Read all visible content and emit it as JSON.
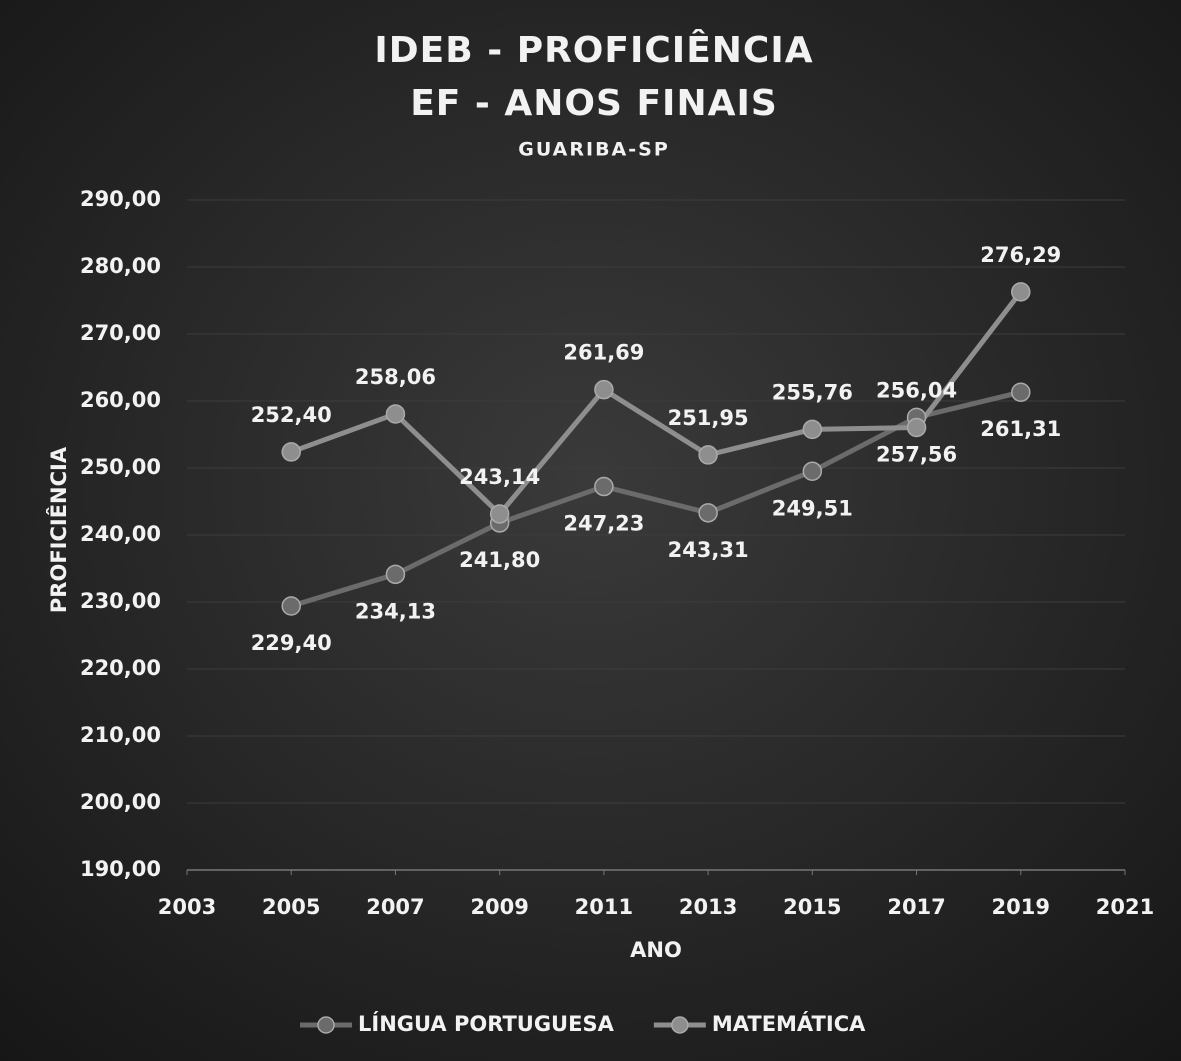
{
  "chart_data": {
    "type": "line",
    "title": [
      "IDEB - PROFICIÊNCIA",
      "EF - ANOS FINAIS"
    ],
    "subtitle": "GUARIBA-SP",
    "x_label": "ANO",
    "y_label": "PROFICIÊNCIA",
    "x": [
      2005,
      2007,
      2009,
      2011,
      2013,
      2015,
      2017,
      2019
    ],
    "series": [
      {
        "name": "LÍNGUA PORTUGUESA",
        "color": "#6b6b6b",
        "values": [
          229.4,
          234.13,
          241.8,
          247.23,
          243.31,
          249.51,
          257.56,
          261.31
        ],
        "value_labels": [
          "229,40",
          "234,13",
          "241,80",
          "247,23",
          "243,31",
          "249,51",
          "257,56",
          "261,31"
        ]
      },
      {
        "name": "MATEMÁTICA",
        "color": "#8e8e8e",
        "values": [
          252.4,
          258.06,
          243.14,
          261.69,
          251.95,
          255.76,
          256.04,
          276.29
        ],
        "value_labels": [
          "252,40",
          "258,06",
          "243,14",
          "261,69",
          "251,95",
          "255,76",
          "256,04",
          "276,29"
        ]
      }
    ],
    "xlim": [
      2003,
      2021
    ],
    "xticks": [
      2003,
      2005,
      2007,
      2009,
      2011,
      2013,
      2015,
      2017,
      2019,
      2021
    ],
    "ylim": [
      190,
      290
    ],
    "yticks": [
      {
        "value": 190,
        "label": "190,00"
      },
      {
        "value": 200,
        "label": "200,00"
      },
      {
        "value": 210,
        "label": "210,00"
      },
      {
        "value": 220,
        "label": "220,00"
      },
      {
        "value": 230,
        "label": "230,00"
      },
      {
        "value": 240,
        "label": "240,00"
      },
      {
        "value": 250,
        "label": "250,00"
      },
      {
        "value": 260,
        "label": "260,00"
      },
      {
        "value": 270,
        "label": "270,00"
      },
      {
        "value": 280,
        "label": "280,00"
      },
      {
        "value": 290,
        "label": "290,00"
      }
    ],
    "grid": true,
    "legend": "bottom"
  }
}
